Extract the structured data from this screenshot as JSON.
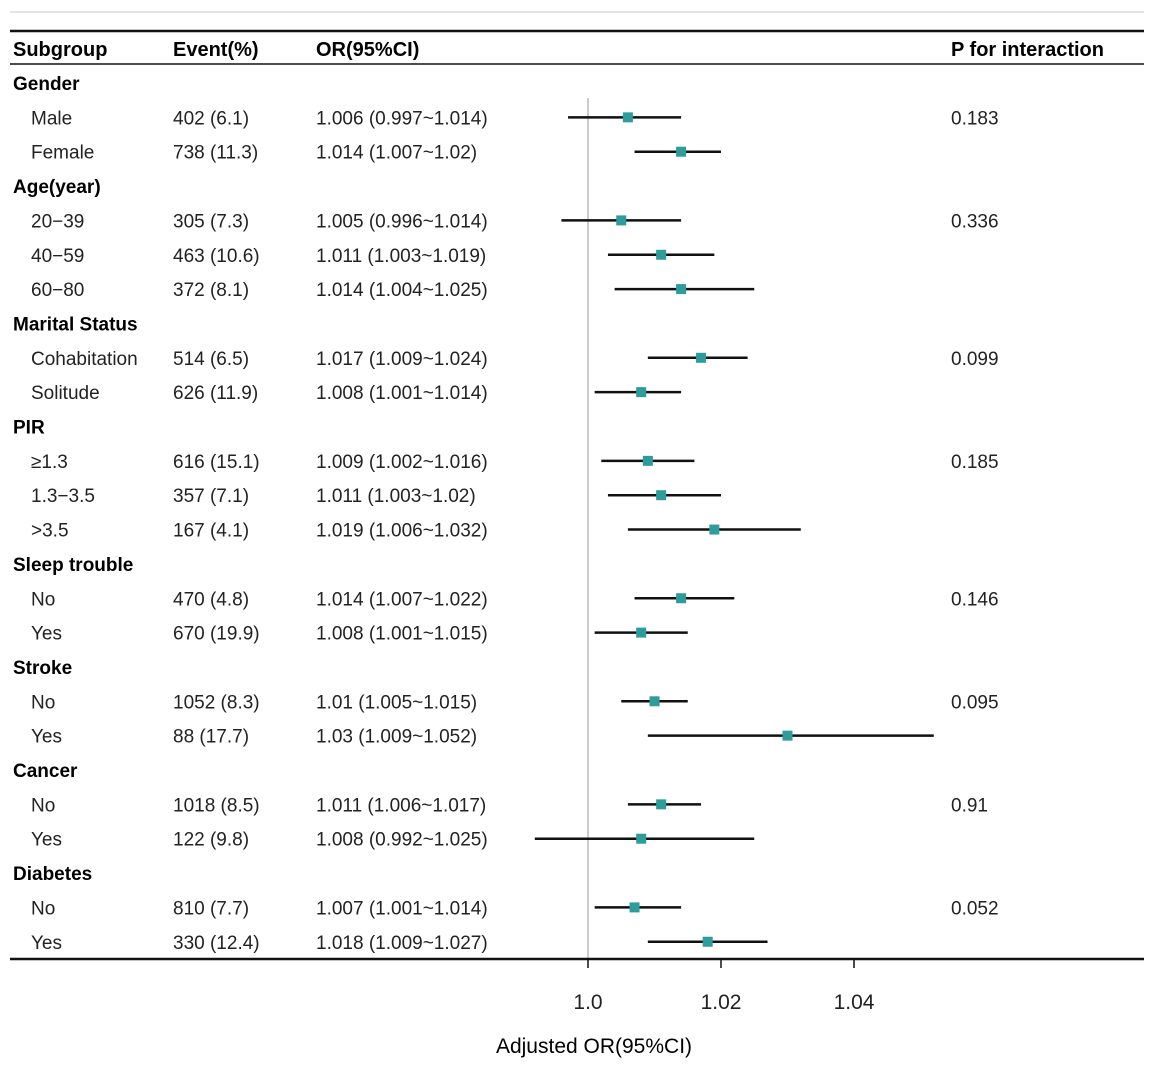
{
  "headers": {
    "subgroup": "Subgroup",
    "event": "Event(%)",
    "or": "OR(95%CI)",
    "p": "P for interaction"
  },
  "xaxis": {
    "label": "Adjusted OR(95%CI)",
    "ticks": [
      {
        "value": 1.0,
        "label": "1.0"
      },
      {
        "value": 1.02,
        "label": "1.02"
      },
      {
        "value": 1.04,
        "label": "1.04"
      }
    ],
    "reference": 1.0
  },
  "colors": {
    "marker": "#2e9c9a",
    "line": "#111111",
    "reference": "#9a9a9a"
  },
  "chart_data": {
    "type": "forest",
    "xlabel": "Adjusted OR(95%CI)",
    "groups": [
      {
        "name": "Gender",
        "p": "0.183",
        "rows": [
          {
            "label": "Male",
            "event": "402 (6.1)",
            "text": "1.006 (0.997~1.014)",
            "or": 1.006,
            "lo": 0.997,
            "hi": 1.014
          },
          {
            "label": "Female",
            "event": "738 (11.3)",
            "text": "1.014 (1.007~1.02)",
            "or": 1.014,
            "lo": 1.007,
            "hi": 1.02
          }
        ]
      },
      {
        "name": "Age(year)",
        "p": "0.336",
        "rows": [
          {
            "label": "20−39",
            "event": "305 (7.3)",
            "text": "1.005 (0.996~1.014)",
            "or": 1.005,
            "lo": 0.996,
            "hi": 1.014
          },
          {
            "label": "40−59",
            "event": "463 (10.6)",
            "text": "1.011 (1.003~1.019)",
            "or": 1.011,
            "lo": 1.003,
            "hi": 1.019
          },
          {
            "label": "60−80",
            "event": "372 (8.1)",
            "text": "1.014 (1.004~1.025)",
            "or": 1.014,
            "lo": 1.004,
            "hi": 1.025
          }
        ]
      },
      {
        "name": "Marital Status",
        "p": "0.099",
        "rows": [
          {
            "label": "Cohabitation",
            "event": "514 (6.5)",
            "text": "1.017 (1.009~1.024)",
            "or": 1.017,
            "lo": 1.009,
            "hi": 1.024
          },
          {
            "label": "Solitude",
            "event": "626 (11.9)",
            "text": "1.008 (1.001~1.014)",
            "or": 1.008,
            "lo": 1.001,
            "hi": 1.014
          }
        ]
      },
      {
        "name": "PIR",
        "p": "0.185",
        "rows": [
          {
            "label": "≥1.3",
            "event": "616 (15.1)",
            "text": "1.009 (1.002~1.016)",
            "or": 1.009,
            "lo": 1.002,
            "hi": 1.016
          },
          {
            "label": "1.3−3.5",
            "event": "357 (7.1)",
            "text": "1.011 (1.003~1.02)",
            "or": 1.011,
            "lo": 1.003,
            "hi": 1.02
          },
          {
            "label": ">3.5",
            "event": "167 (4.1)",
            "text": "1.019 (1.006~1.032)",
            "or": 1.019,
            "lo": 1.006,
            "hi": 1.032
          }
        ]
      },
      {
        "name": "Sleep trouble",
        "p": "0.146",
        "rows": [
          {
            "label": "No",
            "event": "470 (4.8)",
            "text": "1.014 (1.007~1.022)",
            "or": 1.014,
            "lo": 1.007,
            "hi": 1.022
          },
          {
            "label": "Yes",
            "event": "670 (19.9)",
            "text": "1.008 (1.001~1.015)",
            "or": 1.008,
            "lo": 1.001,
            "hi": 1.015
          }
        ]
      },
      {
        "name": "Stroke",
        "p": "0.095",
        "rows": [
          {
            "label": "No",
            "event": "1052 (8.3)",
            "text": "1.01 (1.005~1.015)",
            "or": 1.01,
            "lo": 1.005,
            "hi": 1.015
          },
          {
            "label": "Yes",
            "event": "88 (17.7)",
            "text": "1.03 (1.009~1.052)",
            "or": 1.03,
            "lo": 1.009,
            "hi": 1.052
          }
        ]
      },
      {
        "name": "Cancer",
        "p": "0.91",
        "rows": [
          {
            "label": "No",
            "event": "1018 (8.5)",
            "text": "1.011 (1.006~1.017)",
            "or": 1.011,
            "lo": 1.006,
            "hi": 1.017
          },
          {
            "label": "Yes",
            "event": "122 (9.8)",
            "text": "1.008 (0.992~1.025)",
            "or": 1.008,
            "lo": 0.992,
            "hi": 1.025
          }
        ]
      },
      {
        "name": "Diabetes",
        "p": "0.052",
        "rows": [
          {
            "label": "No",
            "event": "810 (7.7)",
            "text": "1.007 (1.001~1.014)",
            "or": 1.007,
            "lo": 1.001,
            "hi": 1.014
          },
          {
            "label": "Yes",
            "event": "330 (12.4)",
            "text": "1.018 (1.009~1.027)",
            "or": 1.018,
            "lo": 1.009,
            "hi": 1.027
          }
        ]
      }
    ]
  }
}
